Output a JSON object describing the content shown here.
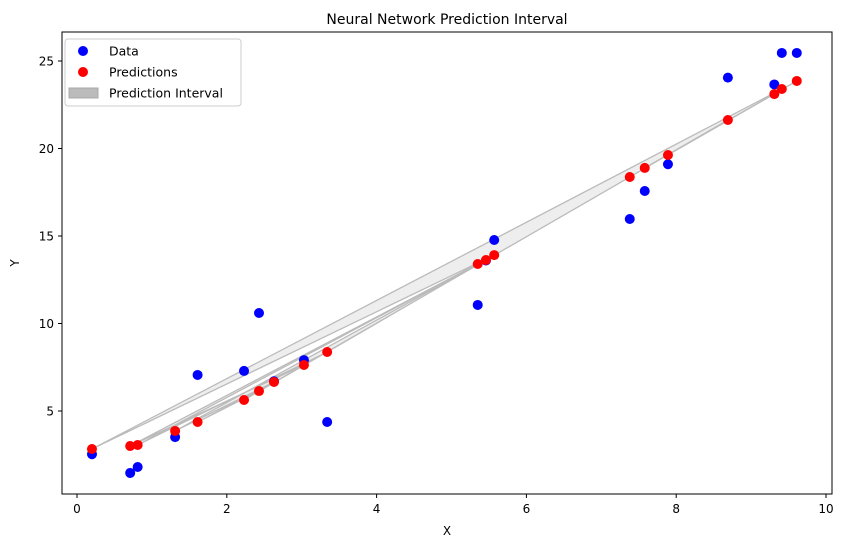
{
  "chart_data": {
    "type": "scatter",
    "title": "Neural Network Prediction Interval",
    "xlabel": "X",
    "ylabel": "Y",
    "xlim": [
      -0.2,
      10.1
    ],
    "ylim": [
      0.3,
      26.6
    ],
    "xticks": [
      0,
      2,
      4,
      6,
      8,
      10
    ],
    "yticks": [
      5,
      10,
      15,
      20,
      25
    ],
    "grid": false,
    "legend_position": "top-left",
    "colors": {
      "data": "#0000ff",
      "predictions": "#ff0000",
      "interval": "#bbbbbb"
    },
    "x": [
      0.2,
      0.71,
      0.81,
      1.31,
      1.61,
      2.23,
      2.43,
      2.63,
      3.03,
      3.34,
      5.35,
      5.46,
      5.57,
      7.38,
      7.58,
      7.89,
      8.69,
      9.31,
      9.41,
      9.61
    ],
    "series": [
      {
        "name": "Data",
        "values": [
          2.53,
          1.46,
          1.8,
          3.51,
          7.06,
          7.29,
          10.6,
          6.7,
          7.91,
          4.37,
          11.06,
          13.6,
          14.77,
          15.97,
          17.57,
          19.1,
          24.05,
          23.66,
          25.46,
          25.46
        ]
      },
      {
        "name": "Predictions",
        "values": [
          2.83,
          3.0,
          3.06,
          3.86,
          4.37,
          5.63,
          6.14,
          6.66,
          7.63,
          8.37,
          13.4,
          13.63,
          13.91,
          18.37,
          18.89,
          19.63,
          21.63,
          23.11,
          23.4,
          23.86
        ]
      }
    ],
    "interval_name": "Prediction Interval"
  }
}
